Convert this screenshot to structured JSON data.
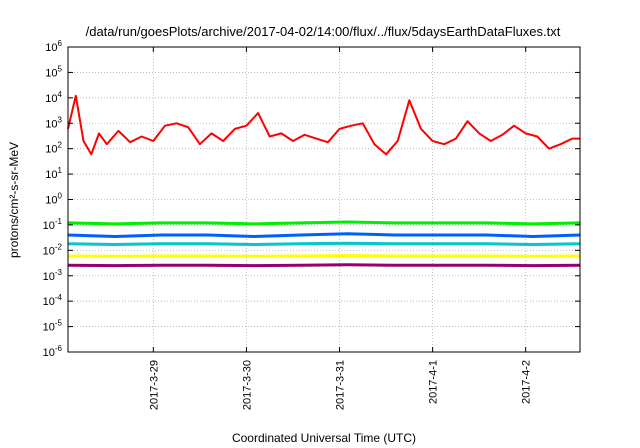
{
  "chart_data": {
    "type": "line",
    "title": "/data/run/goesPlots/archive/2017-04-02/14:00/flux/../flux/5daysEarthDataFluxes.txt",
    "xlabel": "Coordinated Universal Time (UTC)",
    "ylabel": "protons/cm²-s-sr-MeV",
    "yscale": "log",
    "ylim": [
      1e-06,
      1000000.0
    ],
    "xlim": [
      "2017-03-28 02:00",
      "2017-04-02 14:00"
    ],
    "grid": true,
    "y_ticks": [
      {
        "base": "10",
        "exp": "-6"
      },
      {
        "base": "10",
        "exp": "-5"
      },
      {
        "base": "10",
        "exp": "-4"
      },
      {
        "base": "10",
        "exp": "-3"
      },
      {
        "base": "10",
        "exp": "-2"
      },
      {
        "base": "10",
        "exp": "-1"
      },
      {
        "base": "10",
        "exp": "0"
      },
      {
        "base": "10",
        "exp": "1"
      },
      {
        "base": "10",
        "exp": "2"
      },
      {
        "base": "10",
        "exp": "3"
      },
      {
        "base": "10",
        "exp": "4"
      },
      {
        "base": "10",
        "exp": "5"
      },
      {
        "base": "10",
        "exp": "6"
      }
    ],
    "x_ticks": [
      {
        "label": "2017-3-29",
        "date": "2017-03-29 00:00"
      },
      {
        "label": "2017-3-30",
        "date": "2017-03-30 00:00"
      },
      {
        "label": "2017-3-31",
        "date": "2017-03-31 00:00"
      },
      {
        "label": "2017-4-1",
        "date": "2017-04-01 00:00"
      },
      {
        "label": "2017-4-2",
        "date": "2017-04-02 00:00"
      }
    ],
    "series": [
      {
        "color": "#ff0000",
        "x": [
          "2017-03-28 02:00",
          "2017-03-28 04:00",
          "2017-03-28 06:00",
          "2017-03-28 08:00",
          "2017-03-28 10:00",
          "2017-03-28 12:00",
          "2017-03-28 15:00",
          "2017-03-28 18:00",
          "2017-03-28 21:00",
          "2017-03-29 00:00",
          "2017-03-29 03:00",
          "2017-03-29 06:00",
          "2017-03-29 09:00",
          "2017-03-29 12:00",
          "2017-03-29 15:00",
          "2017-03-29 18:00",
          "2017-03-29 21:00",
          "2017-03-30 00:00",
          "2017-03-30 03:00",
          "2017-03-30 06:00",
          "2017-03-30 09:00",
          "2017-03-30 12:00",
          "2017-03-30 15:00",
          "2017-03-30 18:00",
          "2017-03-30 21:00",
          "2017-03-31 00:00",
          "2017-03-31 03:00",
          "2017-03-31 06:00",
          "2017-03-31 09:00",
          "2017-03-31 12:00",
          "2017-03-31 15:00",
          "2017-03-31 18:00",
          "2017-03-31 21:00",
          "2017-04-01 00:00",
          "2017-04-01 03:00",
          "2017-04-01 06:00",
          "2017-04-01 09:00",
          "2017-04-01 12:00",
          "2017-04-01 15:00",
          "2017-04-01 18:00",
          "2017-04-01 21:00",
          "2017-04-02 00:00",
          "2017-04-02 03:00",
          "2017-04-02 06:00",
          "2017-04-02 09:00",
          "2017-04-02 12:00",
          "2017-04-02 14:00"
        ],
        "y": [
          600,
          12000,
          200,
          60,
          400,
          150,
          500,
          180,
          300,
          200,
          800,
          1000,
          700,
          150,
          400,
          200,
          600,
          800,
          2500,
          300,
          400,
          200,
          350,
          250,
          180,
          600,
          800,
          1000,
          150,
          60,
          200,
          8000,
          600,
          200,
          150,
          250,
          1200,
          400,
          200,
          350,
          800,
          400,
          300,
          100,
          150,
          250,
          250
        ]
      },
      {
        "color": "#00ee00",
        "x": [
          "2017-03-28 02:00",
          "2017-03-28 14:00",
          "2017-03-29 02:00",
          "2017-03-29 14:00",
          "2017-03-30 02:00",
          "2017-03-30 14:00",
          "2017-03-31 02:00",
          "2017-03-31 14:00",
          "2017-04-01 02:00",
          "2017-04-01 14:00",
          "2017-04-02 02:00",
          "2017-04-02 14:00"
        ],
        "y": [
          0.12,
          0.11,
          0.12,
          0.12,
          0.11,
          0.12,
          0.13,
          0.12,
          0.12,
          0.12,
          0.11,
          0.12
        ]
      },
      {
        "color": "#0060ff",
        "x": [
          "2017-03-28 02:00",
          "2017-03-28 14:00",
          "2017-03-29 02:00",
          "2017-03-29 14:00",
          "2017-03-30 02:00",
          "2017-03-30 14:00",
          "2017-03-31 02:00",
          "2017-03-31 14:00",
          "2017-04-01 02:00",
          "2017-04-01 14:00",
          "2017-04-02 02:00",
          "2017-04-02 14:00"
        ],
        "y": [
          0.04,
          0.035,
          0.04,
          0.04,
          0.035,
          0.04,
          0.045,
          0.04,
          0.04,
          0.04,
          0.035,
          0.04
        ]
      },
      {
        "color": "#00c8c8",
        "x": [
          "2017-03-28 02:00",
          "2017-03-28 14:00",
          "2017-03-29 02:00",
          "2017-03-29 14:00",
          "2017-03-30 02:00",
          "2017-03-30 14:00",
          "2017-03-31 02:00",
          "2017-03-31 14:00",
          "2017-04-01 02:00",
          "2017-04-01 14:00",
          "2017-04-02 02:00",
          "2017-04-02 14:00"
        ],
        "y": [
          0.018,
          0.017,
          0.018,
          0.018,
          0.017,
          0.018,
          0.019,
          0.018,
          0.018,
          0.018,
          0.017,
          0.018
        ]
      },
      {
        "color": "#ffff00",
        "x": [
          "2017-03-28 02:00",
          "2017-03-28 14:00",
          "2017-03-29 02:00",
          "2017-03-29 14:00",
          "2017-03-30 02:00",
          "2017-03-30 14:00",
          "2017-03-31 02:00",
          "2017-03-31 14:00",
          "2017-04-01 02:00",
          "2017-04-01 14:00",
          "2017-04-02 02:00",
          "2017-04-02 14:00"
        ],
        "y": [
          0.006,
          0.0058,
          0.006,
          0.006,
          0.0058,
          0.006,
          0.0062,
          0.006,
          0.006,
          0.006,
          0.0058,
          0.006
        ]
      },
      {
        "color": "#990066",
        "x": [
          "2017-03-28 02:00",
          "2017-03-28 14:00",
          "2017-03-29 02:00",
          "2017-03-29 14:00",
          "2017-03-30 02:00",
          "2017-03-30 14:00",
          "2017-03-31 02:00",
          "2017-03-31 14:00",
          "2017-04-01 02:00",
          "2017-04-01 14:00",
          "2017-04-02 02:00",
          "2017-04-02 14:00"
        ],
        "y": [
          0.0026,
          0.0025,
          0.0026,
          0.0026,
          0.0025,
          0.0026,
          0.0027,
          0.0026,
          0.0026,
          0.0026,
          0.0025,
          0.0026
        ]
      }
    ]
  }
}
